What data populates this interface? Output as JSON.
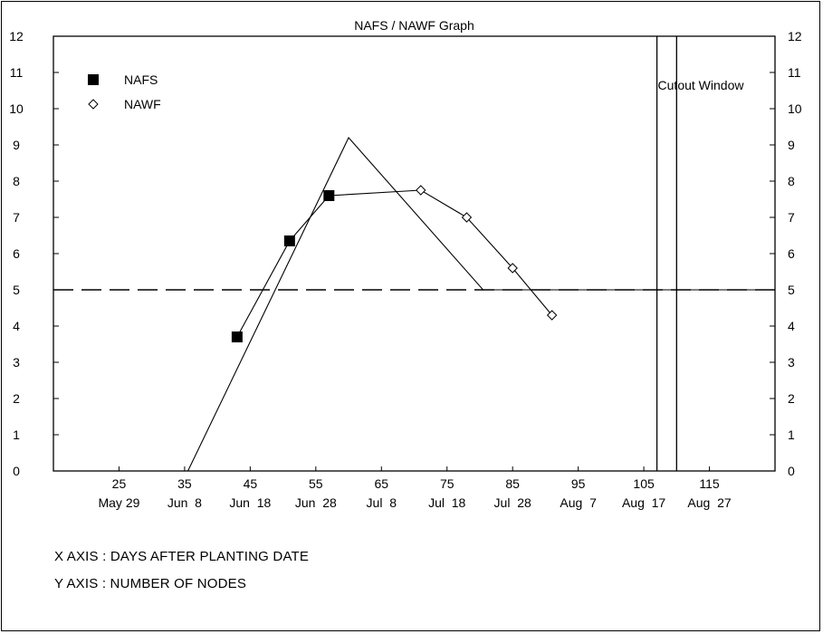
{
  "chart_data": {
    "type": "line",
    "title": "NAFS / NAWF Graph",
    "xlabel": "",
    "ylabel": "",
    "xlim": [
      15,
      125
    ],
    "ylim": [
      0,
      12
    ],
    "x_ticks": [
      {
        "value": 25,
        "label": "25",
        "date": "May 29"
      },
      {
        "value": 35,
        "label": "35",
        "date": "Jun  8"
      },
      {
        "value": 45,
        "label": "45",
        "date": "Jun  18"
      },
      {
        "value": 55,
        "label": "55",
        "date": "Jun  28"
      },
      {
        "value": 65,
        "label": "65",
        "date": "Jul  8"
      },
      {
        "value": 75,
        "label": "75",
        "date": "Jul  18"
      },
      {
        "value": 85,
        "label": "85",
        "date": "Jul  28"
      },
      {
        "value": 95,
        "label": "95",
        "date": "Aug  7"
      },
      {
        "value": 105,
        "label": "105",
        "date": "Aug  17"
      },
      {
        "value": 115,
        "label": "115",
        "date": "Aug  27"
      }
    ],
    "y_ticks": [
      0,
      1,
      2,
      3,
      4,
      5,
      6,
      7,
      8,
      9,
      10,
      11,
      12
    ],
    "series": [
      {
        "name": "NAFS",
        "marker": "filled-square",
        "color": "#000000",
        "x": [
          43,
          51,
          57
        ],
        "y": [
          3.7,
          6.35,
          7.6
        ]
      },
      {
        "name": "NAWF",
        "marker": "open-diamond",
        "color": "#000000",
        "x": [
          57,
          71,
          78,
          85,
          91
        ],
        "y": [
          7.6,
          7.75,
          7.0,
          5.6,
          4.3
        ]
      }
    ],
    "reference_curve": {
      "x": [
        35.5,
        60,
        80.5,
        125
      ],
      "y": [
        0,
        9.2,
        5.0,
        5.0
      ]
    },
    "threshold_line": {
      "y": 5,
      "style": "dashed"
    },
    "cutout_window": {
      "label": "Cutout Window",
      "x": [
        107,
        110
      ]
    },
    "legend": "top-left",
    "grid": false
  },
  "notes": {
    "x_axis": "X AXIS : DAYS AFTER PLANTING DATE",
    "y_axis": "Y AXIS : NUMBER OF NODES"
  }
}
